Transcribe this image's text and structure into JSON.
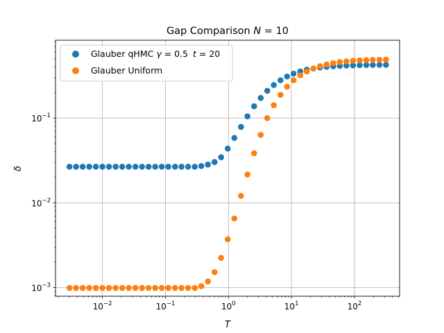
{
  "chart_data": {
    "type": "scatter",
    "title": "Gap Comparison N =  10",
    "title_parts": {
      "prefix": "Gap Comparison ",
      "var": "N",
      "suffix": " =  10"
    },
    "xlabel": "T",
    "ylabel": "δ",
    "x_scale": "log",
    "y_scale": "log",
    "xlim": [
      0.0018,
      520
    ],
    "ylim": [
      0.00079,
      0.83
    ],
    "grid": true,
    "legend_position": "top-left",
    "x_ticks": [
      {
        "value": 0.01,
        "label": "10⁻²",
        "base": "10",
        "exp": "−2"
      },
      {
        "value": 0.1,
        "label": "10⁻¹",
        "base": "10",
        "exp": "−1"
      },
      {
        "value": 1,
        "label": "10⁰",
        "base": "10",
        "exp": "0"
      },
      {
        "value": 10,
        "label": "10¹",
        "base": "10",
        "exp": "1"
      },
      {
        "value": 100,
        "label": "10²",
        "base": "10",
        "exp": "2"
      }
    ],
    "y_ticks": [
      {
        "value": 0.001,
        "label": "10⁻³",
        "base": "10",
        "exp": "−3"
      },
      {
        "value": 0.01,
        "label": "10⁻²",
        "base": "10",
        "exp": "−2"
      },
      {
        "value": 0.1,
        "label": "10⁻¹",
        "base": "10",
        "exp": "−1"
      }
    ],
    "x": [
      0.003,
      0.00382,
      0.00486,
      0.00618,
      0.00787,
      0.01,
      0.0127,
      0.0162,
      0.0206,
      0.0262,
      0.0334,
      0.0425,
      0.054,
      0.0688,
      0.0875,
      0.111,
      0.142,
      0.18,
      0.229,
      0.292,
      0.371,
      0.472,
      0.601,
      0.765,
      0.973,
      1.24,
      1.58,
      2.0,
      2.55,
      3.25,
      4.13,
      5.25,
      6.69,
      8.51,
      10.8,
      13.8,
      17.5,
      22.3,
      28.4,
      36.1,
      46.0,
      58.5,
      74.4,
      94.7,
      121,
      154,
      195,
      249,
      316
    ],
    "series": [
      {
        "name": "Glauber qHMC γ = 0.5  t = 20",
        "name_parts": {
          "prefix": "Glauber qHMC ",
          "g": "γ",
          "g_val": " = 0.5 ",
          "t": "t",
          "t_val": " = 20"
        },
        "color": "#1f77b4",
        "values": [
          0.0267,
          0.0267,
          0.0267,
          0.0267,
          0.0267,
          0.0267,
          0.0267,
          0.0267,
          0.0267,
          0.0267,
          0.0267,
          0.0267,
          0.0267,
          0.0267,
          0.0267,
          0.0267,
          0.0267,
          0.0267,
          0.0267,
          0.0267,
          0.0272,
          0.0283,
          0.0303,
          0.0345,
          0.0437,
          0.0583,
          0.0787,
          0.105,
          0.138,
          0.173,
          0.21,
          0.246,
          0.28,
          0.31,
          0.335,
          0.355,
          0.372,
          0.385,
          0.395,
          0.403,
          0.409,
          0.413,
          0.417,
          0.419,
          0.421,
          0.423,
          0.424,
          0.425,
          0.425
        ]
      },
      {
        "name": "Glauber Uniform",
        "color": "#ff7f0e",
        "values": [
          0.00099,
          0.00099,
          0.00099,
          0.00099,
          0.00099,
          0.00099,
          0.00099,
          0.00099,
          0.00099,
          0.00099,
          0.00099,
          0.00099,
          0.00099,
          0.00099,
          0.00099,
          0.00099,
          0.00099,
          0.00099,
          0.00099,
          0.00099,
          0.00104,
          0.00118,
          0.00152,
          0.00224,
          0.00371,
          0.00654,
          0.0121,
          0.0216,
          0.0385,
          0.0634,
          0.1,
          0.142,
          0.188,
          0.235,
          0.28,
          0.32,
          0.355,
          0.385,
          0.41,
          0.43,
          0.446,
          0.459,
          0.468,
          0.475,
          0.48,
          0.484,
          0.487,
          0.489,
          0.49
        ]
      }
    ]
  }
}
